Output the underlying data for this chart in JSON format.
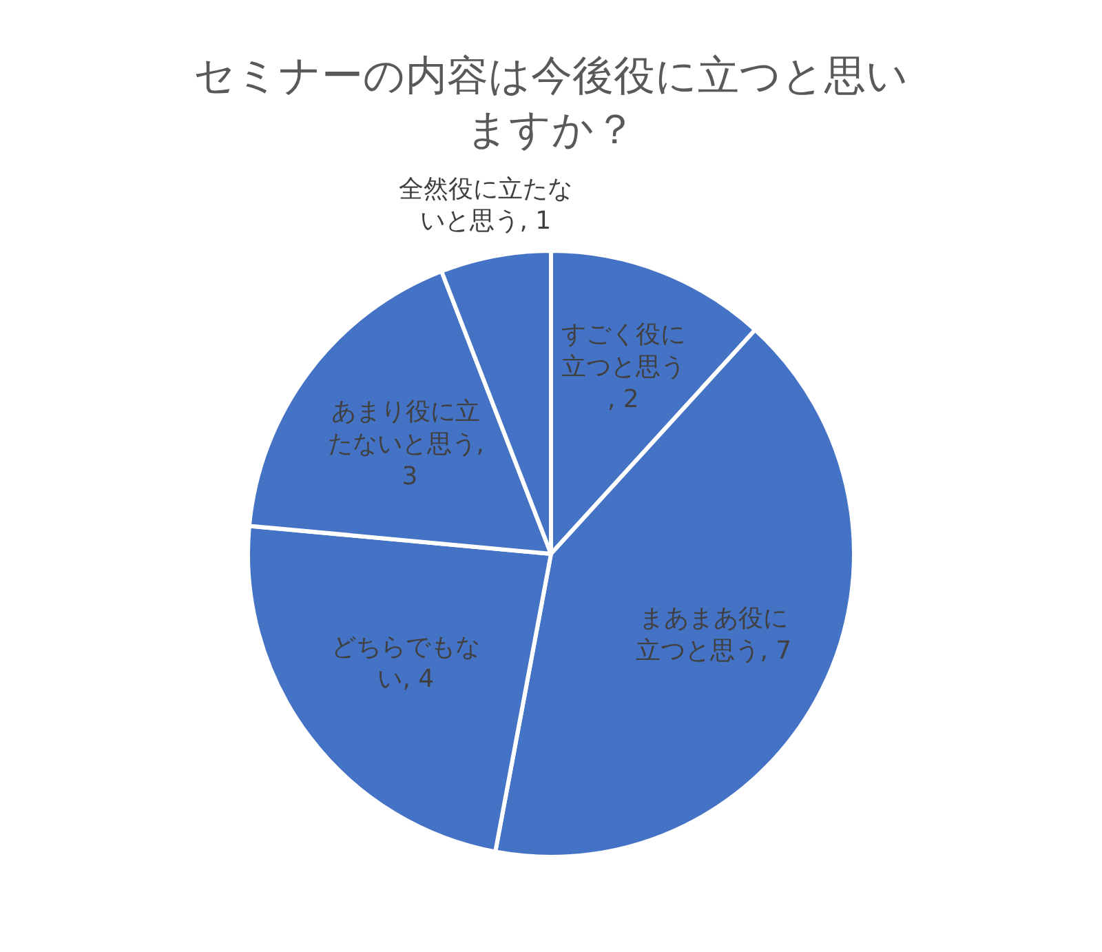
{
  "chart_data": {
    "type": "pie",
    "title": "セミナーの内容は今後役に立つと思いますか？",
    "categories": [
      "すごく役に立つと思う",
      "まあまあ役に立つと思う",
      "どちらでもない",
      "あまり役に立たないと思う",
      "全然役に立たないと思う"
    ],
    "values": [
      2,
      7,
      4,
      3,
      1
    ],
    "value_labels": [
      ", 2",
      ", 7",
      ", 4",
      ", 3",
      ", 1"
    ],
    "colors": [
      "#4472c4",
      "#4472c4",
      "#4472c4",
      "#4472c4",
      "#4472c4"
    ]
  }
}
